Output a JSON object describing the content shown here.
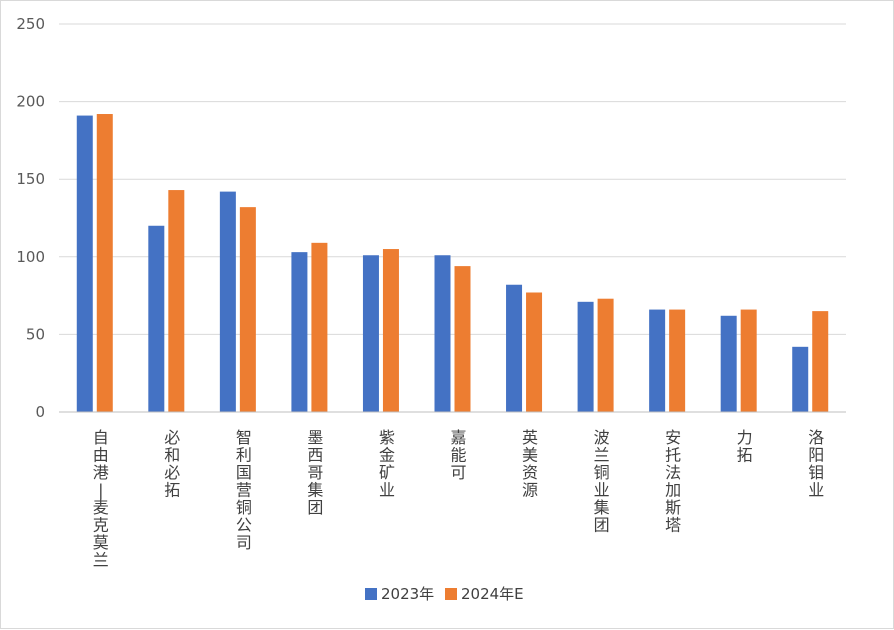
{
  "chart_data": {
    "type": "bar",
    "categories": [
      "自由港-麦克莫兰",
      "必和必拓",
      "智利国营铜公司",
      "墨西哥集团",
      "紫金矿业",
      "嘉能可",
      "英美资源",
      "波兰铜业集团",
      "安托法加斯塔",
      "力拓",
      "洛阳钼业"
    ],
    "series": [
      {
        "name": "2023年",
        "color": "#4472c4",
        "values": [
          191,
          120,
          142,
          103,
          101,
          101,
          82,
          71,
          66,
          62,
          42
        ]
      },
      {
        "name": "2024年E",
        "color": "#ed7d31",
        "values": [
          192,
          143,
          132,
          109,
          105,
          94,
          77,
          73,
          66,
          66,
          65
        ]
      }
    ],
    "ylim": [
      0,
      250
    ],
    "yticks": [
      0,
      50,
      100,
      150,
      200,
      250
    ],
    "title": "",
    "xlabel": "",
    "ylabel": "",
    "grid": true,
    "legend_position": "bottom"
  }
}
